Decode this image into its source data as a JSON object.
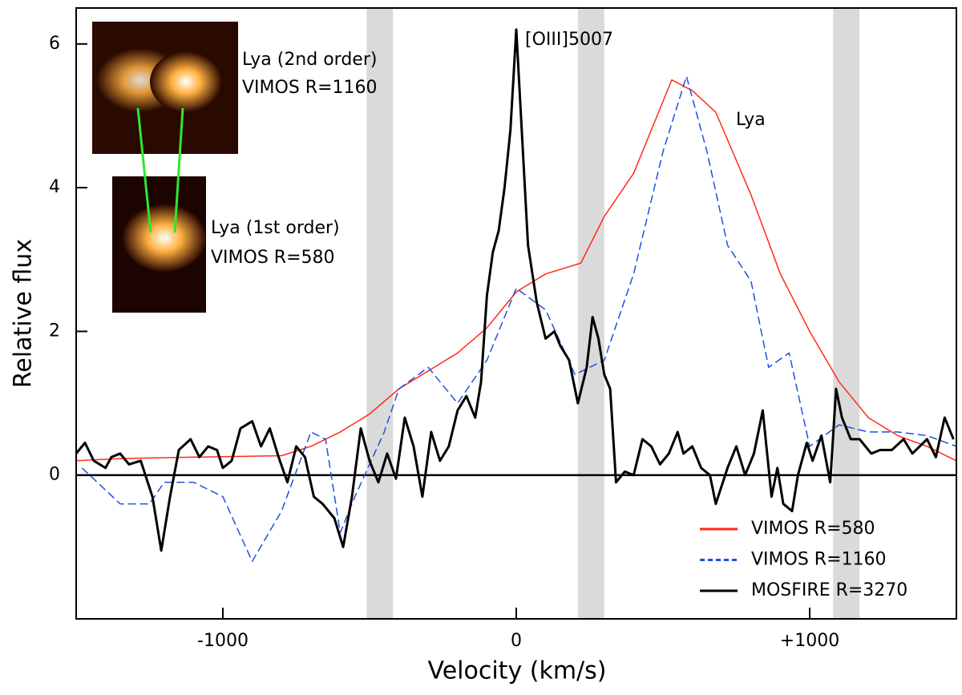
{
  "chart_data": {
    "type": "line",
    "x_label": "Velocity (km/s)",
    "y_label": "Relative flux",
    "xlim": [
      -1500,
      1500
    ],
    "ylim": [
      -2,
      6.5
    ],
    "xticks": [
      -1000,
      0,
      {
        "value": 1000,
        "label": "+1000"
      }
    ],
    "yticks": [
      0,
      2,
      4,
      6
    ],
    "reference_line": 0,
    "bands": [
      [
        -510,
        -420
      ],
      [
        210,
        300
      ],
      [
        1080,
        1170
      ]
    ],
    "annotations": [
      "[OIII]5007",
      "Lya",
      "Lya (2nd order)",
      "VIMOS R=1160",
      "Lya (1st order)",
      "VIMOS R=580"
    ],
    "legend": "lower right",
    "series": [
      {
        "name": "VIMOS R=580",
        "color": "#ff2a1a",
        "dash": "solid",
        "x": [
          -1500,
          -1350,
          -1100,
          -800,
          -700,
          -600,
          -500,
          -400,
          -300,
          -200,
          -100,
          0,
          100,
          220,
          300,
          400,
          530,
          600,
          680,
          800,
          900,
          1000,
          1100,
          1200,
          1300,
          1400,
          1500
        ],
        "values": [
          0.2,
          0.23,
          0.25,
          0.27,
          0.4,
          0.6,
          0.85,
          1.2,
          1.45,
          1.7,
          2.05,
          2.55,
          2.8,
          2.95,
          3.6,
          4.2,
          5.5,
          5.35,
          5.05,
          3.9,
          2.8,
          2.0,
          1.3,
          0.8,
          0.55,
          0.4,
          0.2
        ]
      },
      {
        "name": "VIMOS R=1160",
        "color": "#1f4fe0",
        "dash": "dashed",
        "x": [
          -1480,
          -1350,
          -1250,
          -1200,
          -1100,
          -1000,
          -900,
          -800,
          -700,
          -650,
          -600,
          -550,
          -450,
          -400,
          -300,
          -200,
          -100,
          0,
          100,
          200,
          300,
          400,
          500,
          580,
          650,
          720,
          800,
          860,
          930,
          1000,
          1100,
          1200,
          1300,
          1400,
          1500
        ],
        "values": [
          0.1,
          -0.4,
          -0.4,
          -0.1,
          -0.1,
          -0.3,
          -1.2,
          -0.5,
          0.6,
          0.5,
          -0.8,
          -0.3,
          0.6,
          1.2,
          1.5,
          1.0,
          1.6,
          2.6,
          2.3,
          1.4,
          1.6,
          2.8,
          4.5,
          5.55,
          4.5,
          3.2,
          2.7,
          1.5,
          1.7,
          0.4,
          0.7,
          0.6,
          0.6,
          0.55,
          0.4
        ]
      },
      {
        "name": "MOSFIRE R=3270",
        "color": "#000000",
        "dash": "solid",
        "x": [
          -1500,
          -1470,
          -1440,
          -1400,
          -1380,
          -1350,
          -1320,
          -1280,
          -1240,
          -1210,
          -1180,
          -1150,
          -1110,
          -1080,
          -1050,
          -1020,
          -1000,
          -970,
          -940,
          -900,
          -870,
          -840,
          -810,
          -780,
          -750,
          -720,
          -690,
          -660,
          -620,
          -590,
          -560,
          -530,
          -500,
          -470,
          -440,
          -410,
          -380,
          -350,
          -320,
          -290,
          -260,
          -230,
          -200,
          -170,
          -140,
          -120,
          -100,
          -80,
          -60,
          -40,
          -20,
          0,
          20,
          40,
          70,
          100,
          130,
          150,
          180,
          210,
          240,
          260,
          280,
          300,
          320,
          340,
          370,
          400,
          430,
          460,
          490,
          520,
          550,
          570,
          600,
          630,
          660,
          680,
          720,
          750,
          780,
          810,
          840,
          870,
          890,
          910,
          940,
          960,
          990,
          1010,
          1040,
          1070,
          1090,
          1110,
          1140,
          1170,
          1210,
          1240,
          1280,
          1320,
          1350,
          1400,
          1430,
          1460,
          1490
        ],
        "values": [
          0.3,
          0.45,
          0.2,
          0.1,
          0.25,
          0.3,
          0.15,
          0.2,
          -0.3,
          -1.05,
          -0.3,
          0.35,
          0.5,
          0.25,
          0.4,
          0.35,
          0.1,
          0.2,
          0.65,
          0.75,
          0.4,
          0.65,
          0.25,
          -0.1,
          0.4,
          0.25,
          -0.3,
          -0.4,
          -0.6,
          -1.0,
          -0.3,
          0.65,
          0.2,
          -0.1,
          0.3,
          -0.05,
          0.8,
          0.4,
          -0.3,
          0.6,
          0.2,
          0.4,
          0.9,
          1.1,
          0.8,
          1.3,
          2.5,
          3.1,
          3.4,
          4.0,
          4.8,
          6.2,
          4.7,
          3.2,
          2.4,
          1.9,
          2.0,
          1.8,
          1.6,
          1.0,
          1.5,
          2.2,
          1.9,
          1.4,
          1.2,
          -0.1,
          0.05,
          0.0,
          0.5,
          0.4,
          0.15,
          0.3,
          0.6,
          0.3,
          0.4,
          0.1,
          0.0,
          -0.4,
          0.1,
          0.4,
          0.0,
          0.3,
          0.9,
          -0.3,
          0.1,
          -0.4,
          -0.5,
          0.0,
          0.45,
          0.2,
          0.55,
          -0.1,
          1.2,
          0.8,
          0.5,
          0.5,
          0.3,
          0.35,
          0.35,
          0.5,
          0.3,
          0.5,
          0.25,
          0.8,
          0.5
        ]
      }
    ]
  }
}
